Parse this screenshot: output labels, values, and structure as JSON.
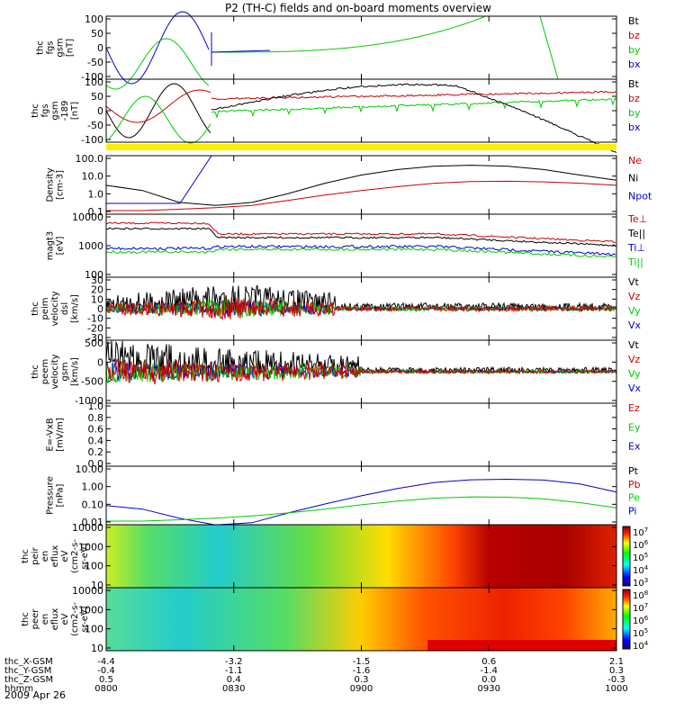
{
  "title": "P2 (TH-C) fields and on-board moments overview",
  "date_label": "2009 Apr 26",
  "xaxis": {
    "tick_labels": [
      "0800",
      "0830",
      "0900",
      "0930",
      "1000"
    ],
    "rows": [
      {
        "label": "thc_X-GSM",
        "values": [
          "-4.4",
          "-3.2",
          "-1.5",
          "0.6",
          "2.1"
        ]
      },
      {
        "label": "thc_Y-GSM",
        "values": [
          "-0.4",
          "-1.1",
          "-1.6",
          "-1.4",
          "0.3"
        ]
      },
      {
        "label": "thc_Z-GSM",
        "values": [
          "0.5",
          "0.4",
          "0.3",
          "0.0",
          "-0.3"
        ]
      },
      {
        "label": "hhmm",
        "values": [
          "0800",
          "0830",
          "0900",
          "0930",
          "1000"
        ]
      }
    ]
  },
  "colors": {
    "black": "#000000",
    "red": "#cc0000",
    "green": "#00cc00",
    "blue": "#0000cc",
    "yellow": "#ffee00"
  },
  "chart_data": [
    {
      "type": "line",
      "ylabel": [
        "thc",
        "fgs",
        "gsm",
        "[nT]"
      ],
      "yticks": [
        "100",
        "50",
        "0",
        "-50",
        "-100"
      ],
      "legend": [
        "Bt",
        "bz",
        "by",
        "bx"
      ]
    },
    {
      "type": "line",
      "ylabel": [
        "thc",
        "fgs",
        "gsm",
        "-189",
        "[nT]"
      ],
      "yticks": [
        "100",
        "50",
        "0",
        "-50",
        "-100"
      ],
      "legend": [
        "Bt",
        "bz",
        "by",
        "bx"
      ]
    },
    {
      "type": "line",
      "ylabel": [
        "Density",
        "[cm-3]"
      ],
      "yticks": [
        "100.0",
        "10.0",
        "1.0",
        "0.1"
      ],
      "legend": [
        "Ne",
        "Ni",
        "Npot"
      ],
      "xlim_min": [
        800,
        1000
      ],
      "series": [
        {
          "name": "Ni",
          "values": [
            3,
            1.5,
            0.3,
            0.2,
            0.3,
            1,
            4,
            12,
            25,
            40,
            45,
            40,
            25,
            12,
            6
          ]
        },
        {
          "name": "Ne",
          "values": [
            0.1,
            0.1,
            0.12,
            0.15,
            0.2,
            0.4,
            0.8,
            1.5,
            2.5,
            4,
            5,
            5.2,
            4.8,
            4,
            3
          ]
        }
      ]
    },
    {
      "type": "line",
      "ylabel": [
        "magt3",
        "[eV]"
      ],
      "yticks": [
        "10000",
        "1000",
        "100"
      ],
      "legend": [
        "Te⊥",
        "Te||",
        "Ti⊥",
        "Ti||"
      ]
    },
    {
      "type": "line",
      "ylabel": [
        "thc",
        "peim",
        "velocity",
        "dsl",
        "[km/s]"
      ],
      "yticks": [
        "30",
        "20",
        "10",
        "0",
        "-10",
        "-20",
        "-30"
      ],
      "legend": [
        "Vt",
        "Vz",
        "Vy",
        "Vx"
      ]
    },
    {
      "type": "line",
      "ylabel": [
        "thc",
        "peem",
        "velocity",
        "gsm",
        "[km/s]"
      ],
      "yticks": [
        "500",
        "0",
        "-500",
        "-1000"
      ],
      "legend": [
        "Vt",
        "Vz",
        "Vy",
        "Vx"
      ]
    },
    {
      "type": "line",
      "ylabel": [
        "E=-VxB",
        "[mV/m]"
      ],
      "yticks": [
        "1.0",
        "0.8",
        "0.6",
        "0.4",
        "0.2",
        "0.0"
      ],
      "legend": [
        "Ez",
        "Ey",
        "Ex"
      ]
    },
    {
      "type": "line",
      "ylabel": [
        "Pressure",
        "[nPa]"
      ],
      "yticks": [
        "10.00",
        "1.00",
        "0.10",
        "0.01"
      ],
      "legend": [
        "Pt",
        "Pb",
        "Pe",
        "Pi"
      ],
      "series": [
        {
          "name": "Pi",
          "values": [
            0.08,
            0.05,
            0.015,
            0.006,
            0.008,
            0.03,
            0.1,
            0.3,
            0.8,
            1.8,
            2.6,
            2.8,
            2.5,
            1.5,
            0.5
          ]
        },
        {
          "name": "Pe",
          "values": [
            0.01,
            0.01,
            0.012,
            0.015,
            0.02,
            0.03,
            0.05,
            0.09,
            0.15,
            0.22,
            0.26,
            0.25,
            0.2,
            0.12,
            0.06
          ]
        }
      ]
    },
    {
      "type": "heatmap",
      "ylabel": [
        "thc",
        "peir",
        "en",
        "eflux",
        "eV",
        "(cm2-s-",
        "sr-eV)"
      ],
      "yticks": [
        "10000",
        "1000",
        "100",
        "10"
      ],
      "colorbar": [
        "7",
        "6",
        "5",
        "4",
        "3"
      ]
    },
    {
      "type": "heatmap",
      "ylabel": [
        "thc",
        "peer",
        "en",
        "eflux",
        "eV",
        "(cm2-s-",
        "sr-eV)"
      ],
      "yticks": [
        "10000",
        "1000",
        "100",
        "10"
      ],
      "colorbar": [
        "8",
        "7",
        "6",
        "5",
        "4"
      ]
    }
  ]
}
